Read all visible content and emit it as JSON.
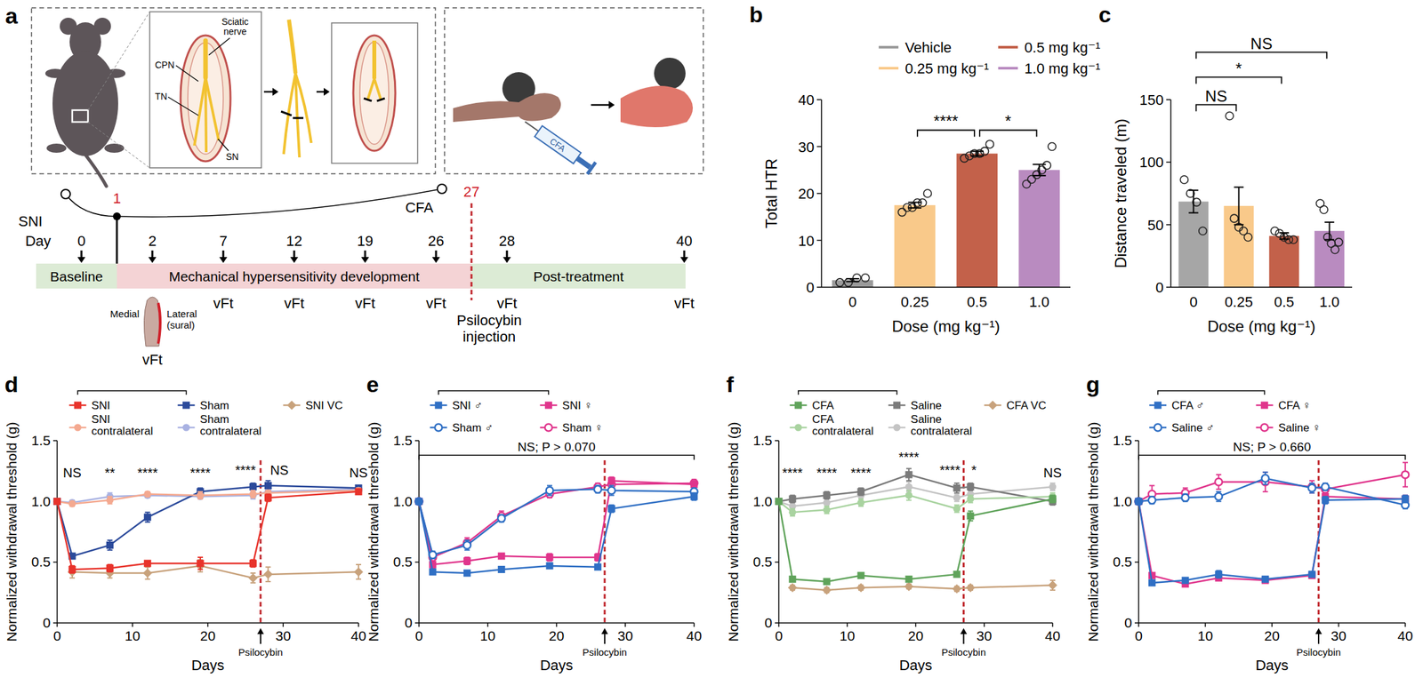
{
  "diagram": {
    "title": "a",
    "sni": {
      "label": "SNI",
      "anatomy_labels": [
        "Sciatic nerve",
        "CPN",
        "TN",
        "SN"
      ]
    },
    "cfa": {
      "label": "CFA",
      "syringe_label": "CFA"
    },
    "timeline": {
      "day_label": "Day",
      "days": [
        0,
        2,
        7,
        12,
        19,
        26,
        28,
        40
      ],
      "model_day": 1,
      "injection_day": 27,
      "test_days": [
        2,
        7,
        12,
        19,
        26,
        28,
        40
      ],
      "test_label": "vFt",
      "phases": [
        "Baseline",
        "Mechanical hypersensitivity development",
        "Post-treatment"
      ],
      "paw_labels": [
        "Medial",
        "Lateral (sural)"
      ],
      "injection_label": "Psilocybin injection"
    }
  },
  "chart_data": [
    {
      "type": "bar",
      "title": "b",
      "categories": [
        "0",
        "0.25",
        "0.5",
        "1.0"
      ],
      "x_label": "Dose (mg kg⁻¹)",
      "y_label": "Total HTR",
      "ylim": [
        0,
        40
      ],
      "yticks": [
        0,
        10,
        20,
        30,
        40
      ],
      "legend": "top",
      "series": [
        {
          "name": "Vehicle",
          "color": "#9b9b9b",
          "values": [
            1.5,
            null,
            null,
            null
          ],
          "errors": [
            0.3,
            null,
            null,
            null
          ],
          "points": [
            [
              1,
              1,
              2,
              2
            ],
            null,
            null,
            null
          ]
        },
        {
          "name": "0.25 mg kg⁻¹",
          "color": "#f9c98a",
          "values": [
            null,
            17.5,
            null,
            null
          ],
          "errors": [
            null,
            0.6,
            null,
            null
          ],
          "points": [
            null,
            [
              16,
              17,
              17,
              18,
              18,
              20
            ],
            null,
            null
          ]
        },
        {
          "name": "0.5 mg kg⁻¹",
          "color": "#c3614a",
          "values": [
            null,
            null,
            28.5,
            null
          ],
          "errors": [
            null,
            null,
            0.5,
            null
          ],
          "points": [
            null,
            null,
            [
              27.5,
              28,
              28.5,
              28.5,
              29,
              30.5
            ],
            null
          ]
        },
        {
          "name": "1.0 mg kg⁻¹",
          "color": "#b98bc0",
          "values": [
            null,
            null,
            null,
            25
          ],
          "errors": [
            null,
            null,
            null,
            1.2
          ],
          "points": [
            null,
            null,
            null,
            [
              22,
              23,
              24,
              25,
              26,
              30
            ]
          ]
        }
      ],
      "annotations": [
        {
          "text": "****",
          "x": [
            1,
            2
          ],
          "y": 33.5
        },
        {
          "text": "*",
          "x": [
            2,
            3
          ],
          "y": 33.5
        }
      ]
    },
    {
      "type": "bar",
      "title": "c",
      "categories": [
        "0",
        "0.25",
        "0.5",
        "1.0"
      ],
      "x_label": "Dose (mg kg⁻¹)",
      "y_label": "Distance traveled (m)",
      "ylim": [
        0,
        150
      ],
      "yticks": [
        0,
        50,
        100,
        150
      ],
      "values": [
        68.5,
        65,
        41,
        45
      ],
      "errors": [
        9,
        15,
        2.5,
        7
      ],
      "colors": [
        "#a6a6a6",
        "#f9c98a",
        "#c3614a",
        "#b98bc0"
      ],
      "points": [
        [
          86,
          75,
          68,
          45
        ],
        [
          137,
          55,
          48,
          45,
          40
        ],
        [
          45,
          43,
          40,
          38,
          38
        ],
        [
          67,
          62,
          40,
          35,
          30,
          36
        ]
      ],
      "annotations": [
        {
          "text": "NS",
          "x": [
            0,
            3
          ],
          "y": 188
        },
        {
          "text": "*",
          "x": [
            0,
            2
          ],
          "y": 168
        },
        {
          "text": "NS",
          "x": [
            0,
            1
          ],
          "y": 146
        }
      ]
    },
    {
      "type": "line",
      "title": "d",
      "x": [
        0,
        2,
        7,
        12,
        19,
        26,
        28,
        40
      ],
      "xlim": [
        0,
        40
      ],
      "xticks": [
        0,
        10,
        20,
        30,
        40
      ],
      "ylim": [
        0,
        1.5
      ],
      "yticks": [
        0,
        0.5,
        {
          "value": 1,
          "label": "1.0"
        },
        1.5
      ],
      "x_label": "Days",
      "y_label": "Normalized withdrawal threshold (g)",
      "legend": "top",
      "series": [
        {
          "name": "SNI",
          "color": "#e8332b",
          "marker": "square",
          "values": [
            1.0,
            0.44,
            0.45,
            0.49,
            0.49,
            0.49,
            1.03,
            1.08
          ],
          "errors": [
            0,
            0.03,
            0.03,
            0.02,
            0.05,
            0.03,
            0.03,
            0.02
          ]
        },
        {
          "name": "SNI contralateral",
          "color": "#f4a990",
          "marker": "circle",
          "values": [
            1.0,
            0.98,
            1.01,
            1.06,
            1.05,
            1.06,
            1.07,
            1.09
          ],
          "errors": [
            0,
            0.02,
            0.03,
            0.02,
            0.03,
            0.03,
            0.02,
            0.02
          ]
        },
        {
          "name": "Sham",
          "color": "#2b4a9b",
          "marker": "square",
          "values": [
            1.0,
            0.55,
            0.64,
            0.87,
            1.08,
            1.12,
            1.13,
            1.11
          ],
          "errors": [
            0,
            0.02,
            0.04,
            0.04,
            0.03,
            0.03,
            0.04,
            0.02
          ]
        },
        {
          "name": "Sham contralateral",
          "color": "#a9b2e2",
          "marker": "circle",
          "values": [
            1.0,
            0.99,
            1.04,
            1.05,
            1.04,
            1.05,
            1.08,
            1.1
          ],
          "errors": [
            0,
            0.02,
            0.03,
            0.02,
            0.02,
            0.03,
            0.02,
            0.02
          ]
        },
        {
          "name": "SNI VC",
          "color": "#c8a27c",
          "marker": "diamond",
          "values": [
            null,
            0.42,
            0.41,
            0.41,
            0.47,
            0.37,
            0.4,
            0.42
          ],
          "errors": [
            null,
            0.05,
            0.04,
            0.05,
            0.05,
            0.04,
            0.06,
            0.06
          ]
        }
      ],
      "annotations": [
        {
          "text": "NS",
          "x": 2,
          "y": 1.2
        },
        {
          "text": "**",
          "x": 7,
          "y": 1.2
        },
        {
          "text": "****",
          "x": 12,
          "y": 1.2
        },
        {
          "text": "****",
          "x": 19,
          "y": 1.2
        },
        {
          "text": "****",
          "x": 25,
          "y": 1.22
        },
        {
          "text": "NS",
          "x": 29.5,
          "y": 1.22
        },
        {
          "text": "NS",
          "x": 40,
          "y": 1.2
        },
        {
          "text": "Psilocybin",
          "x": 27,
          "kind": "event"
        }
      ]
    },
    {
      "type": "line",
      "title": "e",
      "x": [
        0,
        2,
        7,
        12,
        19,
        26,
        28,
        40
      ],
      "xlim": [
        0,
        40
      ],
      "xticks": [
        0,
        10,
        20,
        30,
        40
      ],
      "ylim": [
        0,
        1.5
      ],
      "yticks": [
        0,
        0.5,
        {
          "value": 1,
          "label": "1.0"
        },
        1.5
      ],
      "x_label": "Days",
      "y_label": "Normalized withdrawal threshold (g)",
      "legend": "top",
      "series": [
        {
          "name": "SNI ♂",
          "color": "#2f6fc4",
          "marker": "square",
          "values": [
            1.0,
            0.42,
            0.41,
            0.44,
            0.47,
            0.46,
            0.94,
            1.04
          ],
          "errors": [
            0,
            0.02,
            0.02,
            0.02,
            0.02,
            0.02,
            0.03,
            0.03
          ]
        },
        {
          "name": "Sham ♂",
          "color": "#2f6fc4",
          "marker": "open-circle",
          "values": [
            1.0,
            0.56,
            0.64,
            0.86,
            1.09,
            1.1,
            1.09,
            1.08
          ],
          "errors": [
            0,
            0.03,
            0.04,
            0.03,
            0.04,
            0.03,
            0.04,
            0.03
          ]
        },
        {
          "name": "SNI ♀",
          "color": "#e0358c",
          "marker": "square",
          "values": [
            1.0,
            0.48,
            0.51,
            0.55,
            0.54,
            0.54,
            1.17,
            1.14
          ],
          "errors": [
            0,
            0.03,
            0.03,
            0.02,
            0.03,
            0.03,
            0.03,
            0.03
          ]
        },
        {
          "name": "Sham ♀",
          "color": "#e0358c",
          "marker": "open-circle",
          "values": [
            1.0,
            0.54,
            0.66,
            0.88,
            1.06,
            1.12,
            1.14,
            1.15
          ],
          "errors": [
            0,
            0.03,
            0.04,
            0.04,
            0.03,
            0.03,
            0.04,
            0.03
          ]
        }
      ],
      "annotations": [
        {
          "text": "NS; P > 0.070",
          "x": [
            0,
            40
          ],
          "y": 1.38
        },
        {
          "text": "Psilocybin",
          "x": 27,
          "kind": "event"
        }
      ]
    },
    {
      "type": "line",
      "title": "f",
      "x": [
        0,
        2,
        7,
        12,
        19,
        26,
        28,
        40
      ],
      "xlim": [
        0,
        40
      ],
      "xticks": [
        0,
        10,
        20,
        30,
        40
      ],
      "ylim": [
        0,
        1.5
      ],
      "yticks": [
        0,
        0.5,
        {
          "value": 1,
          "label": "1.0"
        },
        1.5
      ],
      "x_label": "Days",
      "y_label": "Normalized withdrawal threshold (g)",
      "legend": "top",
      "series": [
        {
          "name": "CFA",
          "color": "#5fa35a",
          "marker": "square",
          "values": [
            1.0,
            0.36,
            0.34,
            0.39,
            0.36,
            0.4,
            0.88,
            1.02
          ],
          "errors": [
            0,
            0.02,
            0.02,
            0.02,
            0.02,
            0.02,
            0.04,
            0.03
          ]
        },
        {
          "name": "CFA contralateral",
          "color": "#a9d3a0",
          "marker": "circle",
          "values": [
            1.0,
            0.91,
            0.93,
            0.99,
            1.05,
            0.94,
            1.02,
            1.04
          ],
          "errors": [
            0,
            0.03,
            0.03,
            0.03,
            0.04,
            0.03,
            0.03,
            0.03
          ]
        },
        {
          "name": "Saline",
          "color": "#7b7b7b",
          "marker": "square",
          "values": [
            1.0,
            1.02,
            1.05,
            1.08,
            1.22,
            1.11,
            1.12,
            1.0
          ],
          "errors": [
            0,
            0.03,
            0.03,
            0.03,
            0.05,
            0.04,
            0.03,
            0.03
          ]
        },
        {
          "name": "Saline contralateral",
          "color": "#c4c4c4",
          "marker": "circle",
          "values": [
            1.0,
            0.96,
            0.99,
            1.05,
            1.12,
            1.03,
            1.06,
            1.12
          ],
          "errors": [
            0,
            0.03,
            0.03,
            0.03,
            0.04,
            0.03,
            0.03,
            0.03
          ]
        },
        {
          "name": "CFA VC",
          "color": "#c8a27c",
          "marker": "diamond",
          "values": [
            null,
            0.29,
            0.27,
            0.29,
            0.3,
            0.28,
            0.29,
            0.31
          ],
          "errors": [
            null,
            0.02,
            0.02,
            0.02,
            0.02,
            0.02,
            0.02,
            0.04
          ]
        }
      ],
      "annotations": [
        {
          "text": "****",
          "x": 2,
          "y": 1.2
        },
        {
          "text": "****",
          "x": 7,
          "y": 1.2
        },
        {
          "text": "****",
          "x": 12,
          "y": 1.2
        },
        {
          "text": "****",
          "x": 19,
          "y": 1.33
        },
        {
          "text": "****",
          "x": 25,
          "y": 1.22
        },
        {
          "text": "*",
          "x": 28.5,
          "y": 1.22
        },
        {
          "text": "NS",
          "x": 40,
          "y": 1.2
        },
        {
          "text": "Psilocybin",
          "x": 27,
          "kind": "event"
        }
      ]
    },
    {
      "type": "line",
      "title": "g",
      "x": [
        0,
        2,
        7,
        12,
        19,
        26,
        28,
        40
      ],
      "xlim": [
        0,
        40
      ],
      "xticks": [
        0,
        10,
        20,
        30,
        40
      ],
      "ylim": [
        0,
        1.5
      ],
      "yticks": [
        0,
        0.5,
        {
          "value": 1,
          "label": "1.0"
        },
        1.5
      ],
      "x_label": "Days",
      "y_label": "Normalized withdrawal threshold (g)",
      "legend": "top",
      "series": [
        {
          "name": "CFA ♂",
          "color": "#2f6fc4",
          "marker": "square",
          "values": [
            1.0,
            0.33,
            0.35,
            0.4,
            0.36,
            0.4,
            1.01,
            1.02
          ],
          "errors": [
            0,
            0.02,
            0.02,
            0.03,
            0.02,
            0.02,
            0.03,
            0.03
          ]
        },
        {
          "name": "Saline ♂",
          "color": "#2f6fc4",
          "marker": "open-circle",
          "values": [
            1.0,
            1.01,
            1.03,
            1.04,
            1.19,
            1.11,
            1.12,
            0.97
          ],
          "errors": [
            0,
            0.03,
            0.03,
            0.04,
            0.05,
            0.04,
            0.03,
            0.03
          ]
        },
        {
          "name": "CFA ♀",
          "color": "#e0358c",
          "marker": "square",
          "values": [
            1.0,
            0.39,
            0.32,
            0.37,
            0.35,
            0.39,
            1.04,
            1.02
          ],
          "errors": [
            0,
            0.02,
            0.02,
            0.02,
            0.02,
            0.02,
            0.03,
            0.03
          ]
        },
        {
          "name": "Saline ♀",
          "color": "#e0358c",
          "marker": "open-circle",
          "values": [
            1.0,
            1.06,
            1.07,
            1.16,
            1.16,
            1.12,
            1.1,
            1.22
          ],
          "errors": [
            0,
            0.07,
            0.04,
            0.06,
            0.08,
            0.05,
            0.04,
            0.1
          ]
        }
      ],
      "annotations": [
        {
          "text": "NS; P > 0.660",
          "x": [
            0,
            40
          ],
          "y": 1.38
        },
        {
          "text": "Psilocybin",
          "x": 27,
          "kind": "event"
        }
      ]
    }
  ]
}
